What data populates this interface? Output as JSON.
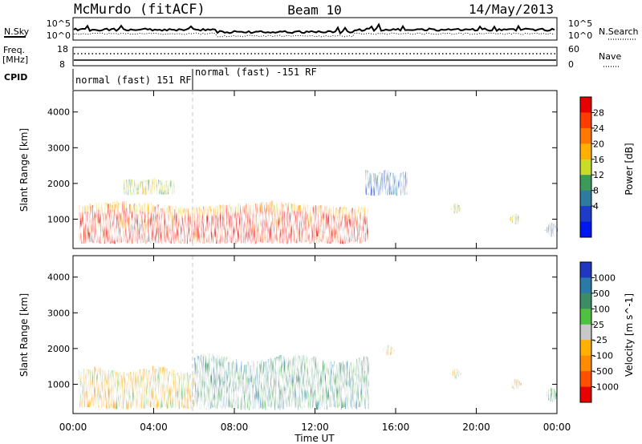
{
  "header": {
    "station": "McMurdo (fitACF)",
    "beam": "Beam 10",
    "date": "14/May/2013"
  },
  "strips": {
    "nsky_label": "N.Sky",
    "nsky_ticks": [
      "10^5",
      "10^0"
    ],
    "nsearch_label": "N.Search",
    "nsearch_ticks": [
      "10^5",
      "10^0"
    ],
    "freq_label": "Freq.",
    "freq_unit": "[MHz]",
    "freq_ticks": [
      "18",
      "8"
    ],
    "nave_label": "Nave",
    "nave_ticks": [
      "60",
      "0"
    ],
    "cpid_label": "CPID",
    "cpid_segments": [
      "normal (fast) 151 RF",
      "normal (fast) -151 RF"
    ]
  },
  "chart_data": [
    {
      "type": "heatmap",
      "panel": "power",
      "ylabel": "Slant Range [km]",
      "xlabel": "",
      "x_tick_labels": [
        "00:00",
        "04:00",
        "08:00",
        "12:00",
        "16:00",
        "20:00",
        "00:00"
      ],
      "x_range_hours": [
        0,
        24
      ],
      "y_ticks": [
        1000,
        2000,
        3000,
        4000
      ],
      "y_range_km": [
        180,
        4600
      ],
      "colorbar": {
        "label": "Power [dB]",
        "ticks": [
          "28",
          "24",
          "20",
          "16",
          "12",
          "8",
          "4"
        ],
        "colors": [
          "#e60000",
          "#ff3c00",
          "#ff7800",
          "#ffb000",
          "#c8dc28",
          "#3c9a5a",
          "#2f7aa0",
          "#1e3cc8",
          "#0018f0"
        ]
      },
      "echo_regions": [
        {
          "t": [
            0.3,
            14.6
          ],
          "r": [
            380,
            1380
          ],
          "level": "high"
        },
        {
          "t": [
            2.5,
            5.0
          ],
          "r": [
            1700,
            2100
          ],
          "level": "mid"
        },
        {
          "t": [
            14.5,
            16.5
          ],
          "r": [
            1700,
            2300
          ],
          "level": "low"
        },
        {
          "t": [
            18.7,
            19.2
          ],
          "r": [
            1150,
            1450
          ],
          "level": "mid"
        },
        {
          "t": [
            21.6,
            22.2
          ],
          "r": [
            850,
            1150
          ],
          "level": "mid"
        },
        {
          "t": [
            23.4,
            24.0
          ],
          "r": [
            500,
            900
          ],
          "level": "low"
        }
      ]
    },
    {
      "type": "heatmap",
      "panel": "velocity",
      "ylabel": "Slant Range [km]",
      "xlabel": "Time UT",
      "x_tick_labels": [
        "00:00",
        "04:00",
        "08:00",
        "12:00",
        "16:00",
        "20:00",
        "00:00"
      ],
      "x_range_hours": [
        0,
        24
      ],
      "y_ticks": [
        1000,
        2000,
        3000,
        4000
      ],
      "y_range_km": [
        180,
        4600
      ],
      "colorbar": {
        "label": "Velocity [m s^-1]",
        "ticks": [
          "1000",
          "500",
          "100",
          "25",
          "-25",
          "-100",
          "-500",
          "-1000"
        ],
        "colors": [
          "#2038c0",
          "#2a7aa8",
          "#3c8c64",
          "#50c040",
          "#c8c8c8",
          "#ffb000",
          "#ff8c00",
          "#ff5000",
          "#e60000"
        ]
      },
      "echo_regions": [
        {
          "t": [
            0.3,
            6.0
          ],
          "r": [
            380,
            1380
          ],
          "level": "negative"
        },
        {
          "t": [
            6.0,
            14.6
          ],
          "r": [
            380,
            1700
          ],
          "level": "positive"
        },
        {
          "t": [
            15.3,
            15.9
          ],
          "r": [
            1800,
            2100
          ],
          "level": "negative"
        },
        {
          "t": [
            18.7,
            19.2
          ],
          "r": [
            1150,
            1450
          ],
          "level": "negative"
        },
        {
          "t": [
            21.6,
            22.2
          ],
          "r": [
            850,
            1150
          ],
          "level": "negative"
        },
        {
          "t": [
            23.4,
            24.0
          ],
          "r": [
            500,
            900
          ],
          "level": "positive"
        }
      ]
    }
  ]
}
